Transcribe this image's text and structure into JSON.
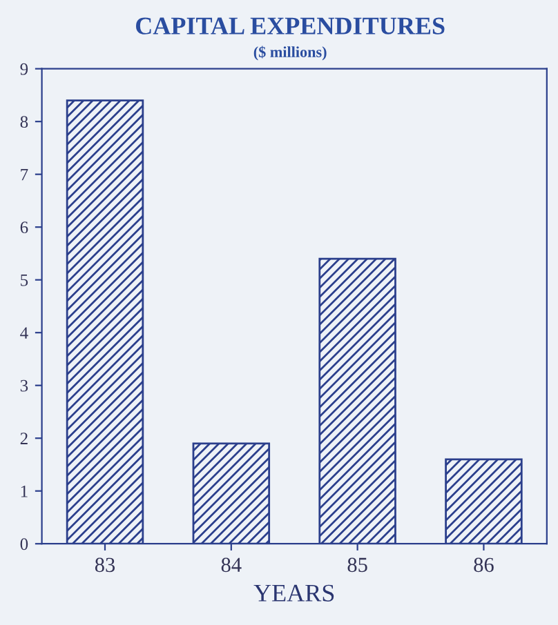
{
  "chart_data": {
    "type": "bar",
    "title": "CAPITAL EXPENDITURES",
    "subtitle": "($ millions)",
    "xlabel": "YEARS",
    "categories": [
      "83",
      "84",
      "85",
      "86"
    ],
    "values": [
      8.4,
      1.9,
      5.4,
      1.6
    ],
    "color": "#2b3f8c",
    "ylim": [
      0,
      9
    ],
    "yticks": [
      0,
      1,
      2,
      3,
      4,
      5,
      6,
      7,
      8,
      9
    ],
    "grid": false
  }
}
